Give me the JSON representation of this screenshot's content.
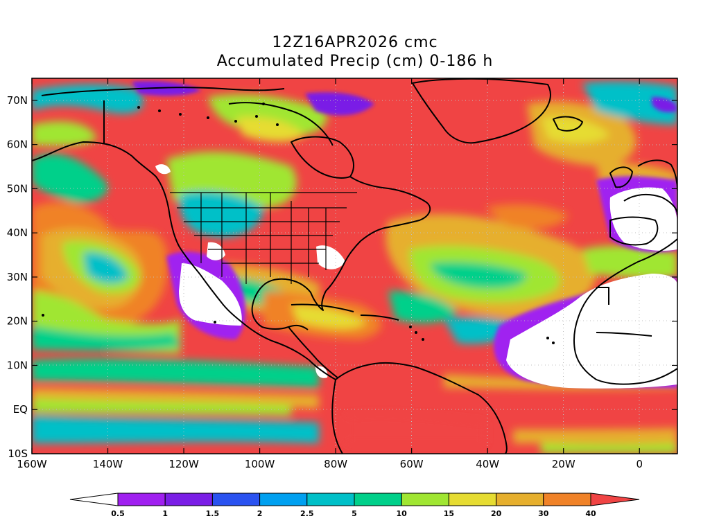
{
  "title": {
    "line1": "12Z16APR2026 cmc",
    "line2": "Accumulated Precip (cm) 0-186 h"
  },
  "map": {
    "lon_range": [
      -160,
      10
    ],
    "lat_range": [
      -10,
      75
    ],
    "lon_ticks": [
      {
        "value": -160,
        "label": "160W"
      },
      {
        "value": -140,
        "label": "140W"
      },
      {
        "value": -120,
        "label": "120W"
      },
      {
        "value": -100,
        "label": "100W"
      },
      {
        "value": -80,
        "label": "80W"
      },
      {
        "value": -60,
        "label": "60W"
      },
      {
        "value": -40,
        "label": "40W"
      },
      {
        "value": -20,
        "label": "20W"
      },
      {
        "value": 0,
        "label": "0"
      }
    ],
    "lat_ticks": [
      {
        "value": 70,
        "label": "70N"
      },
      {
        "value": 60,
        "label": "60N"
      },
      {
        "value": 50,
        "label": "50N"
      },
      {
        "value": 40,
        "label": "40N"
      },
      {
        "value": 30,
        "label": "30N"
      },
      {
        "value": 20,
        "label": "20N"
      },
      {
        "value": 10,
        "label": "10N"
      },
      {
        "value": 0,
        "label": "EQ"
      },
      {
        "value": -10,
        "label": "10S"
      }
    ],
    "background_color": "#f04444",
    "grid": "dotted"
  },
  "colorbar": {
    "levels": [
      "0.5",
      "1",
      "1.5",
      "2",
      "2.5",
      "5",
      "10",
      "15",
      "20",
      "30",
      "40"
    ],
    "colors": [
      "#ffffff",
      "#a020f0",
      "#7a1ee6",
      "#2a52f0",
      "#00a0f0",
      "#00c0c8",
      "#00d08a",
      "#a0e632",
      "#e6dc32",
      "#e6af2d",
      "#f08228",
      "#f04444"
    ]
  }
}
